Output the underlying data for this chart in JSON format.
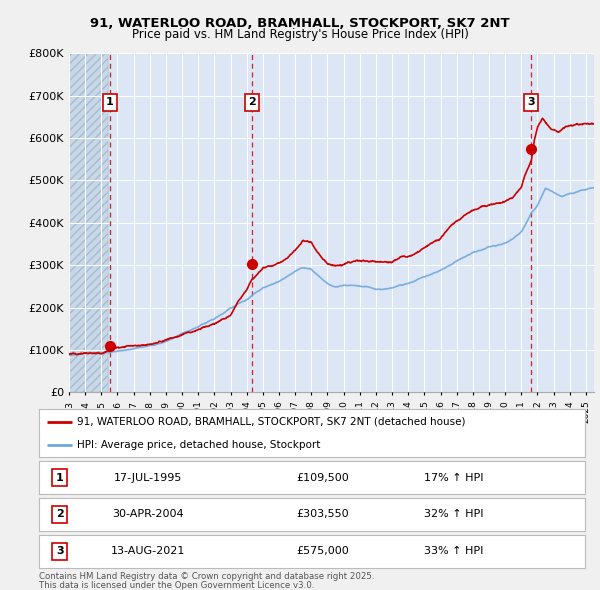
{
  "title": "91, WATERLOO ROAD, BRAMHALL, STOCKPORT, SK7 2NT",
  "subtitle": "Price paid vs. HM Land Registry's House Price Index (HPI)",
  "background_color": "#f0f0f0",
  "plot_bg_color": "#dce6f5",
  "hatch_color": "#c8d8e8",
  "grid_color": "#ffffff",
  "purchases": [
    {
      "date_num": 1995.54,
      "price": 109500,
      "label": "1",
      "date_str": "17-JUL-1995",
      "pct": "17% ↑ HPI"
    },
    {
      "date_num": 2004.33,
      "price": 303550,
      "label": "2",
      "date_str": "30-APR-2004",
      "pct": "32% ↑ HPI"
    },
    {
      "date_num": 2021.62,
      "price": 575000,
      "label": "3",
      "date_str": "13-AUG-2021",
      "pct": "33% ↑ HPI"
    }
  ],
  "xmin": 1993.0,
  "xmax": 2025.5,
  "ymin": 0,
  "ymax": 800000,
  "hpi_line_color": "#6fa8dc",
  "property_line_color": "#cc0000",
  "marker_color": "#cc0000",
  "dashed_line_color": "#cc0000",
  "legend_property": "91, WATERLOO ROAD, BRAMHALL, STOCKPORT, SK7 2NT (detached house)",
  "legend_hpi": "HPI: Average price, detached house, Stockport",
  "footer1": "Contains HM Land Registry data © Crown copyright and database right 2025.",
  "footer2": "This data is licensed under the Open Government Licence v3.0.",
  "hpi_anchors_x": [
    1993,
    1994,
    1995,
    1995.54,
    1996,
    1997,
    1998,
    1999,
    2000,
    2001,
    2002,
    2003,
    2004,
    2004.33,
    2005,
    2006,
    2007,
    2007.5,
    2008,
    2008.5,
    2009,
    2009.5,
    2010,
    2011,
    2012,
    2013,
    2014,
    2015,
    2016,
    2017,
    2018,
    2019,
    2020,
    2020.5,
    2021,
    2021.62,
    2022,
    2022.5,
    2023,
    2023.5,
    2024,
    2024.5,
    2025.5
  ],
  "hpi_anchors_y": [
    88000,
    91000,
    94000,
    96000,
    99000,
    105000,
    112000,
    122000,
    140000,
    155000,
    175000,
    200000,
    220000,
    229962,
    248000,
    265000,
    290000,
    300000,
    295000,
    280000,
    265000,
    255000,
    258000,
    258000,
    250000,
    255000,
    265000,
    280000,
    295000,
    315000,
    335000,
    350000,
    360000,
    370000,
    385000,
    432331,
    450000,
    490000,
    480000,
    470000,
    475000,
    480000,
    490000
  ],
  "prop_anchors_x": [
    1993,
    1994,
    1995,
    1995.54,
    1996,
    1997,
    1998,
    1999,
    2000,
    2001,
    2002,
    2003,
    2003.5,
    2004,
    2004.33,
    2005,
    2006,
    2006.5,
    2007,
    2007.5,
    2008,
    2008.2,
    2008.5,
    2009,
    2009.5,
    2010,
    2010.5,
    2011,
    2012,
    2013,
    2013.5,
    2014,
    2015,
    2016,
    2016.5,
    2017,
    2017.5,
    2018,
    2018.5,
    2019,
    2019.5,
    2020,
    2020.5,
    2021,
    2021.2,
    2021.62,
    2021.8,
    2022,
    2022.3,
    2022.5,
    2022.7,
    2023,
    2023.3,
    2023.6,
    2024,
    2024.5,
    2025,
    2025.5
  ],
  "prop_anchors_y": [
    90000,
    95000,
    103000,
    109500,
    115000,
    122000,
    130000,
    142000,
    158000,
    170000,
    190000,
    220000,
    255000,
    280000,
    303550,
    330000,
    345000,
    355000,
    370000,
    393000,
    390000,
    378000,
    360000,
    340000,
    338000,
    342000,
    345000,
    345000,
    338000,
    345000,
    355000,
    360000,
    375000,
    395000,
    415000,
    430000,
    445000,
    455000,
    465000,
    470000,
    475000,
    480000,
    490000,
    510000,
    535000,
    575000,
    620000,
    650000,
    670000,
    660000,
    650000,
    645000,
    640000,
    650000,
    655000,
    658000,
    660000,
    655000
  ]
}
